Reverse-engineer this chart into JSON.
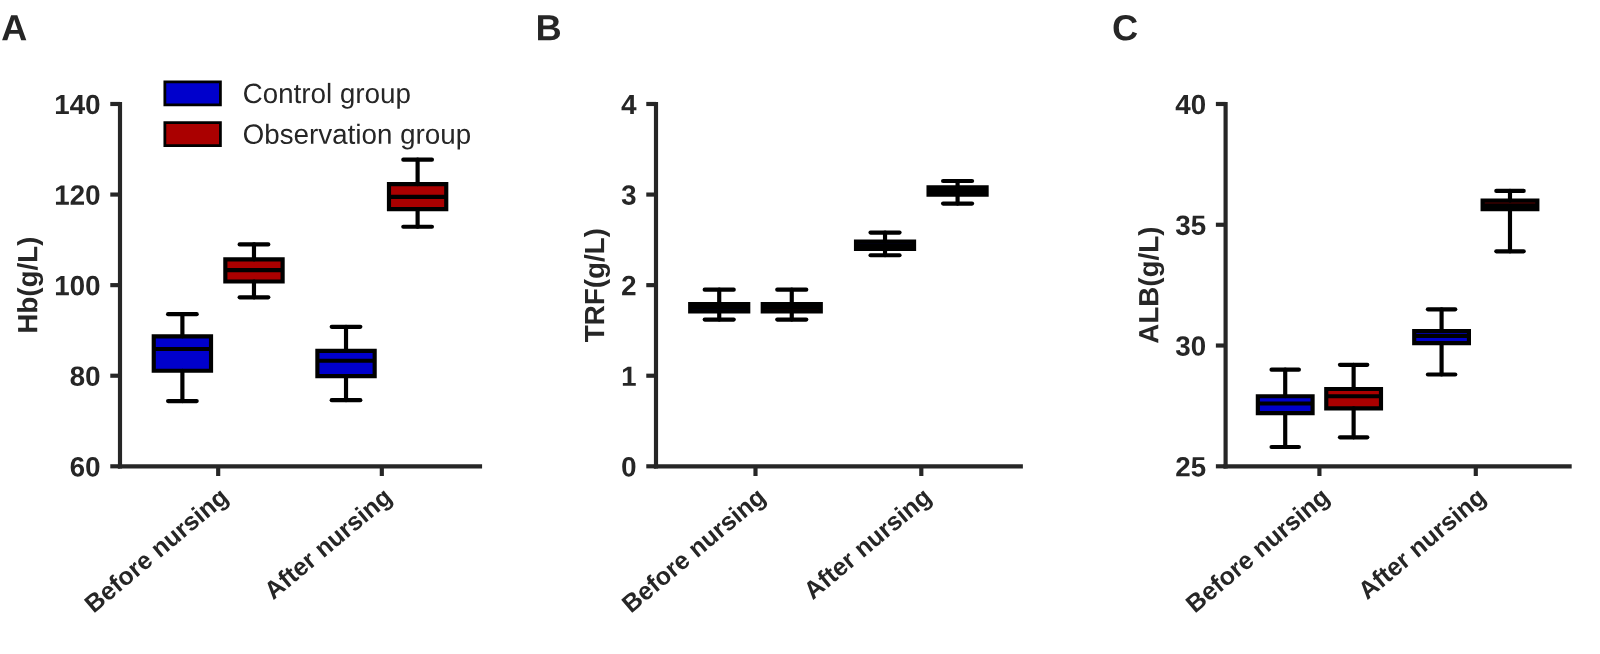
{
  "chart_data": [
    {
      "type": "box",
      "title": "A",
      "ylabel": "Hb(g/L)",
      "categories": [
        "Before nursing",
        "After nursing"
      ],
      "ylim": [
        60,
        140
      ],
      "yticks": [
        60,
        80,
        100,
        120,
        140
      ],
      "legend": "top",
      "series": [
        {
          "name": "Control group",
          "color": "#0000cc",
          "boxes": [
            {
              "low": 74.4,
              "q1": 81.1,
              "median": 85.9,
              "q3": 88.7,
              "high": 93.6
            },
            {
              "low": 74.6,
              "q1": 79.9,
              "median": 83.3,
              "q3": 85.5,
              "high": 90.8
            }
          ]
        },
        {
          "name": "Observation group",
          "color": "#aa0000",
          "boxes": [
            {
              "low": 97.3,
              "q1": 100.8,
              "median": 103.3,
              "q3": 105.7,
              "high": 109
            },
            {
              "low": 112.9,
              "q1": 116.8,
              "median": 119.5,
              "q3": 122.3,
              "high": 127.7
            }
          ]
        }
      ]
    },
    {
      "type": "box",
      "title": "B",
      "ylabel": "TRF(g/L)",
      "categories": [
        "Before nursing",
        "After nursing"
      ],
      "ylim": [
        0,
        4
      ],
      "yticks": [
        0,
        1,
        2,
        3,
        4
      ],
      "series": [
        {
          "color": "#0000cc",
          "boxes": [
            {
              "low": 1.62,
              "q1": 1.71,
              "median": 1.75,
              "q3": 1.79,
              "high": 1.95
            },
            {
              "low": 2.33,
              "q1": 2.4,
              "median": 2.44,
              "q3": 2.48,
              "high": 2.58
            }
          ]
        },
        {
          "color": "#aa0000",
          "boxes": [
            {
              "low": 1.62,
              "q1": 1.71,
              "median": 1.75,
              "q3": 1.79,
              "high": 1.95
            },
            {
              "low": 2.9,
              "q1": 3.0,
              "median": 3.04,
              "q3": 3.08,
              "high": 3.15
            }
          ]
        }
      ]
    },
    {
      "type": "box",
      "title": "C",
      "ylabel": "ALB(g/L)",
      "categories": [
        "Before nursing",
        "After nursing"
      ],
      "ylim": [
        25,
        40
      ],
      "yticks": [
        25,
        30,
        35,
        40
      ],
      "series": [
        {
          "color": "#0000cc",
          "boxes": [
            {
              "low": 25.8,
              "q1": 27.2,
              "median": 27.6,
              "q3": 27.9,
              "high": 29.0
            },
            {
              "low": 28.8,
              "q1": 30.1,
              "median": 30.4,
              "q3": 30.6,
              "high": 31.5
            }
          ]
        },
        {
          "color": "#aa0000",
          "boxes": [
            {
              "low": 26.2,
              "q1": 27.4,
              "median": 27.9,
              "q3": 28.2,
              "high": 29.2
            },
            {
              "low": 33.9,
              "q1": 35.65,
              "median": 35.8,
              "q3": 36.0,
              "high": 36.4
            }
          ]
        }
      ]
    }
  ]
}
